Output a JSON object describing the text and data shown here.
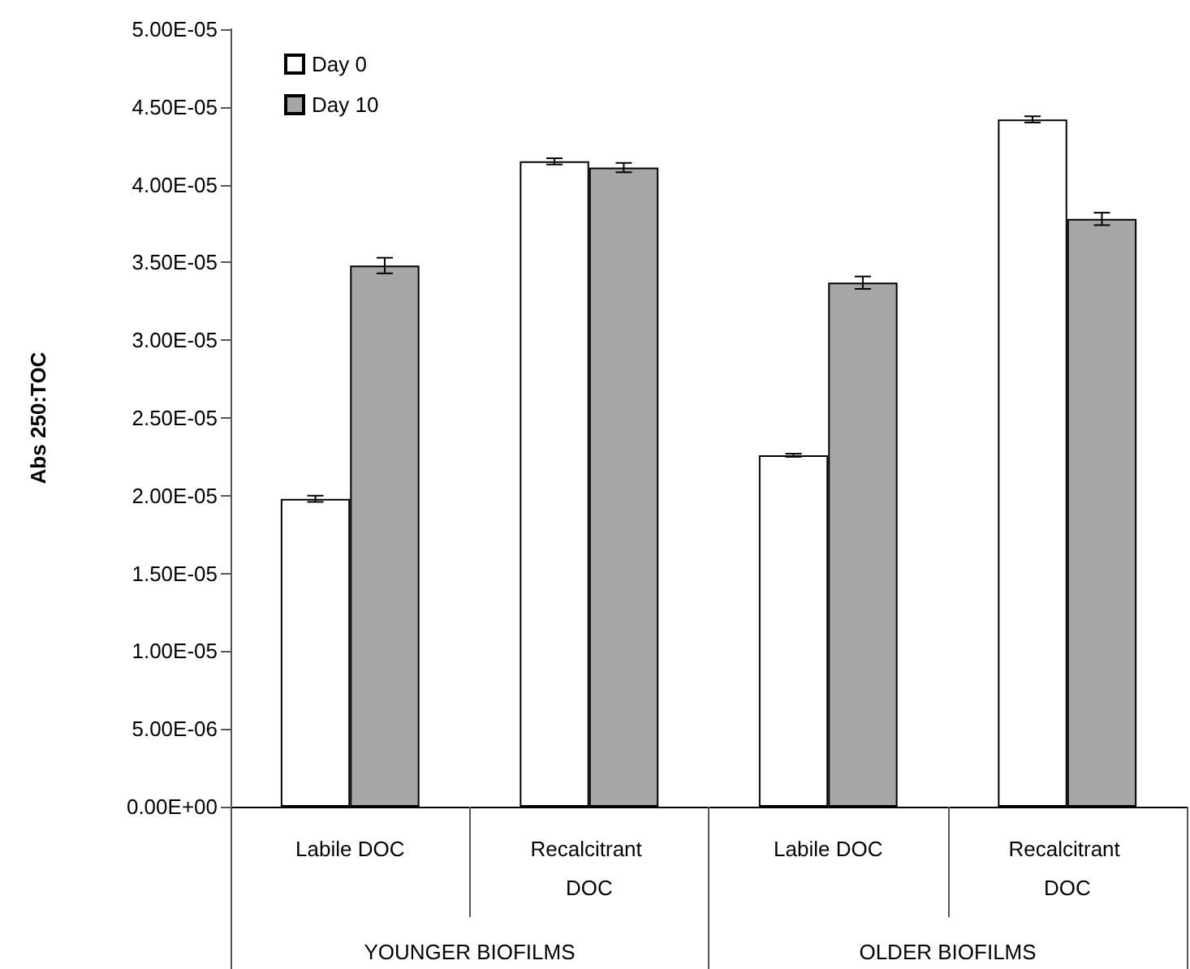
{
  "chart_data": {
    "type": "bar",
    "ylabel": "Abs 250:TOC",
    "categories": [
      "Labile DOC",
      "Recalcitrant DOC",
      "Labile DOC",
      "Recalcitrant DOC"
    ],
    "series": [
      {
        "name": "Day 0",
        "color": "#ffffff",
        "values": [
          1.98e-05,
          4.15e-05,
          2.26e-05,
          4.42e-05
        ],
        "errors": [
          2e-07,
          2e-07,
          1e-07,
          2e-07
        ]
      },
      {
        "name": "Day 10",
        "color": "#a6a6a6",
        "values": [
          3.48e-05,
          4.11e-05,
          3.37e-05,
          3.78e-05
        ],
        "errors": [
          5e-07,
          3e-07,
          4e-07,
          4e-07
        ]
      }
    ],
    "annotations": [
      "YOUNGER BIOFILMS",
      "OLDER BIOFILMS"
    ],
    "ylim": [
      0,
      5e-05
    ],
    "yticks": [
      {
        "value": 0,
        "label": "0.00E+00"
      },
      {
        "value": 5e-06,
        "label": "5.00E-06"
      },
      {
        "value": 1e-05,
        "label": "1.00E-05"
      },
      {
        "value": 1.5e-05,
        "label": "1.50E-05"
      },
      {
        "value": 2e-05,
        "label": "2.00E-05"
      },
      {
        "value": 2.5e-05,
        "label": "2.50E-05"
      },
      {
        "value": 3e-05,
        "label": "3.00E-05"
      },
      {
        "value": 3.5e-05,
        "label": "3.50E-05"
      },
      {
        "value": 4e-05,
        "label": "4.00E-05"
      },
      {
        "value": 4.5e-05,
        "label": "4.50E-05"
      },
      {
        "value": 5e-05,
        "label": "5.00E-05"
      }
    ],
    "legend": "top left"
  }
}
